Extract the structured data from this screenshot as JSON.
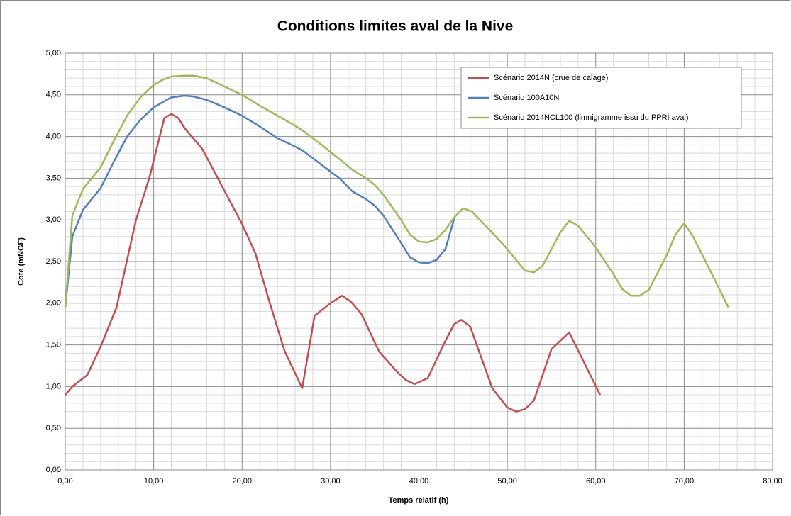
{
  "chart_data": {
    "type": "line",
    "title": "Conditions limites aval de la Nive",
    "x_label": "Temps relatif (h)",
    "y_label": "Cote (mNGF)",
    "xlim": [
      0,
      80
    ],
    "xticks": [
      {
        "value": 0,
        "label": "0,00"
      },
      {
        "value": 10,
        "label": "10,00"
      },
      {
        "value": 20,
        "label": "20,00"
      },
      {
        "value": 30,
        "label": "30,00"
      },
      {
        "value": 40,
        "label": "40,00"
      },
      {
        "value": 50,
        "label": "50,00"
      },
      {
        "value": 60,
        "label": "60,00"
      },
      {
        "value": 70,
        "label": "70,00"
      },
      {
        "value": 80,
        "label": "80,00"
      }
    ],
    "ylim": [
      0,
      5
    ],
    "yticks": [
      {
        "value": 0,
        "label": "0,00"
      },
      {
        "value": 0.5,
        "label": "0,50"
      },
      {
        "value": 1,
        "label": "1,00"
      },
      {
        "value": 1.5,
        "label": "1,50"
      },
      {
        "value": 2,
        "label": "2,00"
      },
      {
        "value": 2.5,
        "label": "2,50"
      },
      {
        "value": 3,
        "label": "3,00"
      },
      {
        "value": 3.5,
        "label": "3,50"
      },
      {
        "value": 4,
        "label": "4,00"
      },
      {
        "value": 4.5,
        "label": "4,50"
      },
      {
        "value": 5,
        "label": "5,00"
      }
    ],
    "grid": true,
    "minor_grid": true,
    "legend": "top-right",
    "series": [
      {
        "name": "Scénario 2014N (crue de calage)",
        "color": "#c0504d",
        "x": [
          0,
          0.8,
          2.5,
          4,
          5.8,
          8,
          9.5,
          11.2,
          12,
          12.8,
          13.5,
          15.5,
          18,
          20,
          21.5,
          23,
          24.8,
          26.8,
          28.2,
          30,
          31.3,
          32.3,
          33.5,
          35.5,
          37.5,
          38.5,
          39.5,
          41,
          43,
          44,
          44.8,
          45.8,
          48.3,
          50,
          51,
          52,
          53,
          55,
          57,
          60.5
        ],
        "values": [
          0.9,
          1.0,
          1.14,
          1.48,
          1.95,
          3.0,
          3.5,
          4.22,
          4.27,
          4.22,
          4.1,
          3.85,
          3.35,
          2.95,
          2.6,
          2.05,
          1.43,
          0.98,
          1.85,
          2.0,
          2.09,
          2.02,
          1.87,
          1.42,
          1.18,
          1.08,
          1.03,
          1.1,
          1.55,
          1.75,
          1.8,
          1.72,
          0.98,
          0.75,
          0.7,
          0.73,
          0.83,
          1.45,
          1.65,
          0.9
        ]
      },
      {
        "name": "Scénario 100A10N",
        "color": "#4f81bd",
        "x": [
          0,
          0.8,
          2,
          4,
          5.5,
          7,
          8.5,
          10,
          12,
          13.5,
          14.5,
          16,
          18,
          20,
          22,
          24,
          26,
          27,
          29,
          31,
          32.5,
          34,
          35,
          36,
          38,
          39,
          40,
          41,
          42,
          43,
          44
        ],
        "values": [
          1.95,
          2.8,
          3.12,
          3.38,
          3.7,
          4.0,
          4.2,
          4.35,
          4.47,
          4.49,
          4.48,
          4.44,
          4.35,
          4.25,
          4.12,
          3.98,
          3.88,
          3.82,
          3.66,
          3.5,
          3.34,
          3.25,
          3.17,
          3.05,
          2.72,
          2.55,
          2.49,
          2.48,
          2.52,
          2.65,
          3.02
        ]
      },
      {
        "name": "Scénario 2014NCL100 (limnigramme issu du PPRI aval)",
        "color": "#9bbb59",
        "x": [
          0,
          0.8,
          2,
          4,
          5.5,
          7,
          8.5,
          10,
          11,
          12,
          13.5,
          14.5,
          16,
          18,
          20,
          22,
          24,
          26,
          27,
          29,
          31,
          32.5,
          34,
          35,
          36,
          38,
          39,
          40,
          41,
          42,
          43,
          44,
          45,
          46,
          48,
          50,
          52,
          53,
          54,
          56,
          57,
          58,
          60,
          62,
          63,
          64,
          65,
          66,
          68,
          69,
          70,
          71,
          73,
          75
        ],
        "values": [
          1.95,
          3.05,
          3.37,
          3.63,
          3.95,
          4.25,
          4.47,
          4.62,
          4.68,
          4.72,
          4.73,
          4.73,
          4.7,
          4.6,
          4.5,
          4.37,
          4.25,
          4.13,
          4.06,
          3.9,
          3.73,
          3.6,
          3.5,
          3.42,
          3.3,
          3.0,
          2.82,
          2.74,
          2.73,
          2.77,
          2.88,
          3.03,
          3.14,
          3.1,
          2.88,
          2.65,
          2.39,
          2.37,
          2.45,
          2.85,
          2.99,
          2.93,
          2.67,
          2.35,
          2.17,
          2.09,
          2.09,
          2.16,
          2.57,
          2.82,
          2.96,
          2.8,
          2.38,
          1.95
        ]
      }
    ]
  }
}
